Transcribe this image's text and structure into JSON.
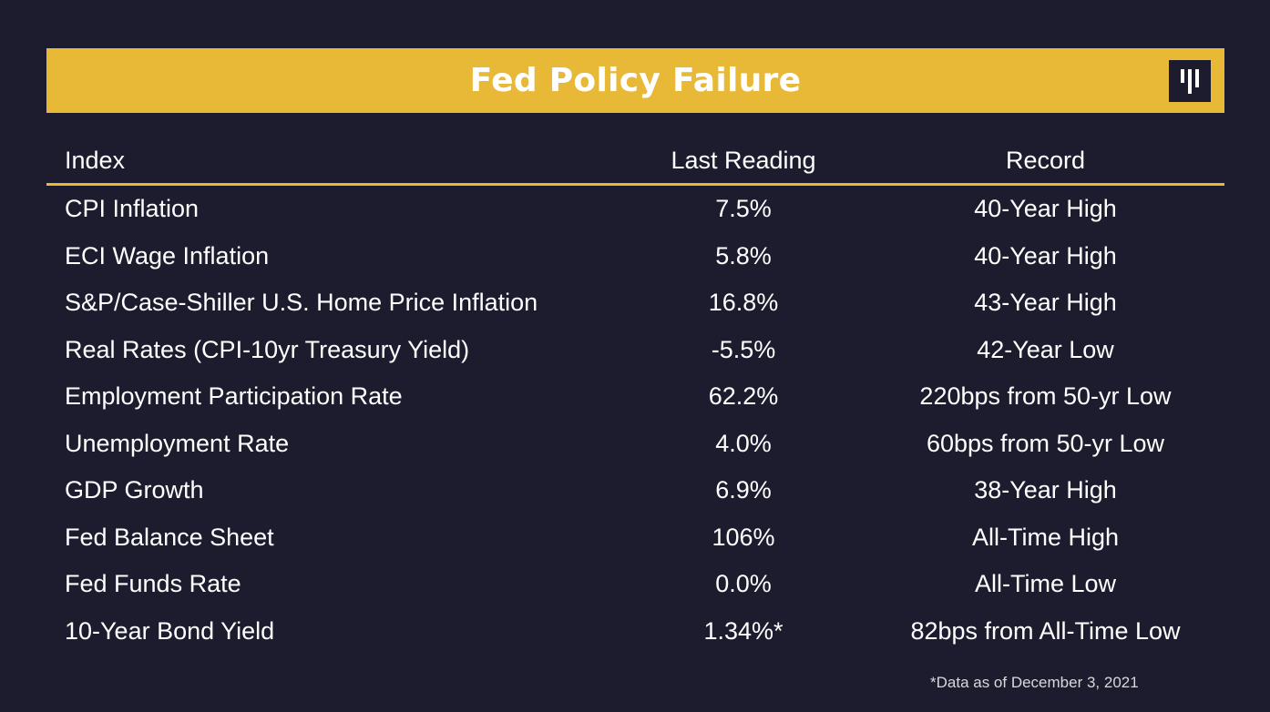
{
  "title": "Fed Policy Failure",
  "logo": {
    "icon": "brand-logo-icon"
  },
  "colors": {
    "background": "#1c1c2e",
    "accent": "#e8b837",
    "text": "#ffffff"
  },
  "table": {
    "headers": {
      "index": "Index",
      "last_reading": "Last Reading",
      "record": "Record"
    },
    "rows": [
      {
        "index": "CPI Inflation",
        "last_reading": "7.5%",
        "record": "40-Year High"
      },
      {
        "index": "ECI Wage Inflation",
        "last_reading": "5.8%",
        "record": "40-Year High"
      },
      {
        "index": "S&P/Case-Shiller U.S. Home Price Inflation",
        "last_reading": "16.8%",
        "record": "43-Year High"
      },
      {
        "index": "Real Rates (CPI-10yr Treasury Yield)",
        "last_reading": "-5.5%",
        "record": "42-Year Low"
      },
      {
        "index": "Employment Participation Rate",
        "last_reading": "62.2%",
        "record": "220bps from 50-yr Low"
      },
      {
        "index": "Unemployment Rate",
        "last_reading": "4.0%",
        "record": "60bps from 50-yr Low"
      },
      {
        "index": "GDP Growth",
        "last_reading": "6.9%",
        "record": "38-Year High"
      },
      {
        "index": "Fed Balance Sheet",
        "last_reading": "106%",
        "record": "All-Time High"
      },
      {
        "index": "Fed Funds Rate",
        "last_reading": "0.0%",
        "record": "All-Time Low"
      },
      {
        "index": "10-Year Bond Yield",
        "last_reading": "1.34%*",
        "record": "82bps from All-Time Low"
      }
    ]
  },
  "footnote": "*Data as of December 3, 2021"
}
